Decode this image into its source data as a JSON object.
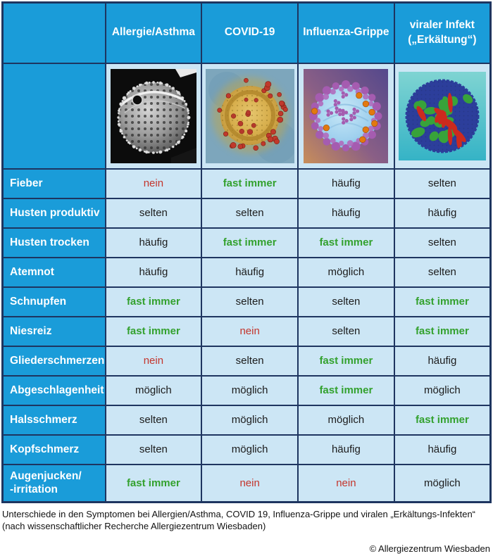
{
  "colors": {
    "accent_blue": "#1a9cd9",
    "cell_light_blue": "#cce6f5",
    "border_navy": "#1e3560",
    "positive_green": "#33a12e",
    "negative_red": "#c4352c",
    "text_black": "#1c1c1c"
  },
  "chart_data": {
    "type": "table",
    "columns": [
      "Allergie/Asthma",
      "COVID-19",
      "Influenza-Grippe",
      "viraler Infekt\n(„Erkältung“)"
    ],
    "image_row": [
      {
        "name": "pollen-sem-image",
        "depicts": "electron microscope image of a pollen grain"
      },
      {
        "name": "covid19-virus-image",
        "depicts": "electron microscope image of coronavirus"
      },
      {
        "name": "influenza-virus-image",
        "depicts": "3D rendering of influenza virus"
      },
      {
        "name": "rhinovirus-image",
        "depicts": "3D rendering of rhinovirus (common cold)"
      }
    ],
    "rows": [
      {
        "label": "Fieber",
        "values": [
          {
            "text": "nein",
            "tone": "negative"
          },
          {
            "text": "fast immer",
            "tone": "positive"
          },
          {
            "text": "häufig",
            "tone": "neutral"
          },
          {
            "text": "selten",
            "tone": "neutral"
          }
        ]
      },
      {
        "label": "Husten produktiv",
        "values": [
          {
            "text": "selten",
            "tone": "neutral"
          },
          {
            "text": "selten",
            "tone": "neutral"
          },
          {
            "text": "häufig",
            "tone": "neutral"
          },
          {
            "text": "häufig",
            "tone": "neutral"
          }
        ]
      },
      {
        "label": "Husten trocken",
        "values": [
          {
            "text": "häufig",
            "tone": "neutral"
          },
          {
            "text": "fast immer",
            "tone": "positive"
          },
          {
            "text": "fast immer",
            "tone": "positive"
          },
          {
            "text": "selten",
            "tone": "neutral"
          }
        ]
      },
      {
        "label": "Atemnot",
        "values": [
          {
            "text": "häufig",
            "tone": "neutral"
          },
          {
            "text": "häufig",
            "tone": "neutral"
          },
          {
            "text": "möglich",
            "tone": "neutral"
          },
          {
            "text": "selten",
            "tone": "neutral"
          }
        ]
      },
      {
        "label": "Schnupfen",
        "values": [
          {
            "text": "fast immer",
            "tone": "positive"
          },
          {
            "text": "selten",
            "tone": "neutral"
          },
          {
            "text": "selten",
            "tone": "neutral"
          },
          {
            "text": "fast immer",
            "tone": "positive"
          }
        ]
      },
      {
        "label": "Niesreiz",
        "values": [
          {
            "text": "fast immer",
            "tone": "positive"
          },
          {
            "text": "nein",
            "tone": "negative"
          },
          {
            "text": "selten",
            "tone": "neutral"
          },
          {
            "text": "fast immer",
            "tone": "positive"
          }
        ]
      },
      {
        "label": "Gliederschmerzen",
        "values": [
          {
            "text": "nein",
            "tone": "negative"
          },
          {
            "text": "selten",
            "tone": "neutral"
          },
          {
            "text": "fast immer",
            "tone": "positive"
          },
          {
            "text": "häufig",
            "tone": "neutral"
          }
        ]
      },
      {
        "label": "Abgeschlagenheit",
        "values": [
          {
            "text": "möglich",
            "tone": "neutral"
          },
          {
            "text": "möglich",
            "tone": "neutral"
          },
          {
            "text": "fast immer",
            "tone": "positive"
          },
          {
            "text": "möglich",
            "tone": "neutral"
          }
        ]
      },
      {
        "label": "Halsschmerz",
        "values": [
          {
            "text": "selten",
            "tone": "neutral"
          },
          {
            "text": "möglich",
            "tone": "neutral"
          },
          {
            "text": "möglich",
            "tone": "neutral"
          },
          {
            "text": "fast immer",
            "tone": "positive"
          }
        ]
      },
      {
        "label": "Kopfschmerz",
        "values": [
          {
            "text": "selten",
            "tone": "neutral"
          },
          {
            "text": "möglich",
            "tone": "neutral"
          },
          {
            "text": "häufig",
            "tone": "neutral"
          },
          {
            "text": "häufig",
            "tone": "neutral"
          }
        ]
      },
      {
        "label": "Augenjucken/\n-irritation",
        "values": [
          {
            "text": "fast immer",
            "tone": "positive"
          },
          {
            "text": "nein",
            "tone": "negative"
          },
          {
            "text": "nein",
            "tone": "negative"
          },
          {
            "text": "möglich",
            "tone": "neutral"
          }
        ]
      }
    ]
  },
  "caption": {
    "line1": "Unterschiede in den Symptomen bei Allergien/Asthma, COVID 19, Influenza-Grippe und viralen „Erkältungs-Infekten“",
    "line2": "(nach wissenschaftlicher Recherche Allergiezentrum Wiesbaden)"
  },
  "copyright": "© Allergiezentrum Wiesbaden"
}
